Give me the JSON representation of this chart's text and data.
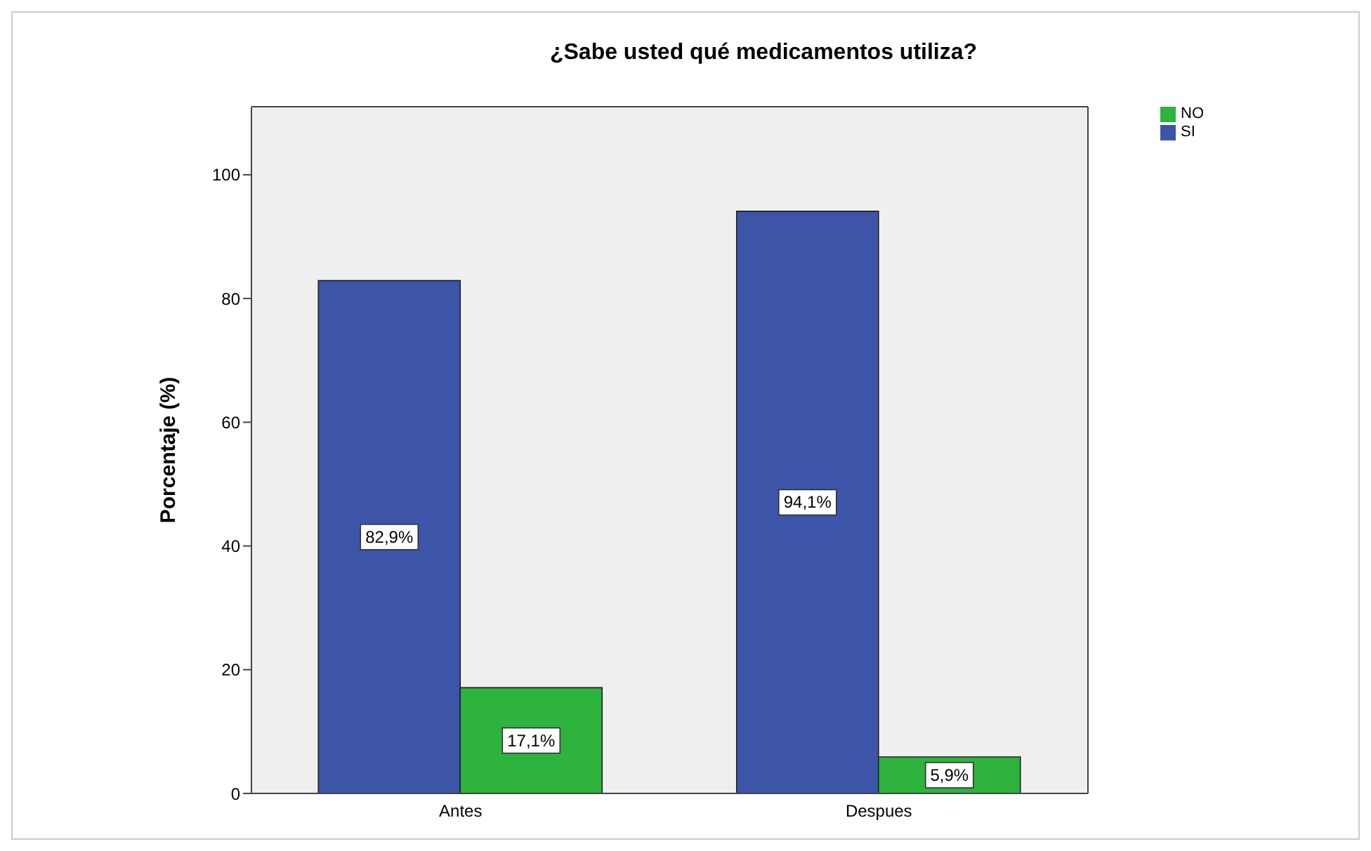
{
  "chart_data": {
    "type": "bar",
    "title": "¿Sabe usted qué medicamentos utiliza?",
    "ylabel": "Porcentaje (%)",
    "categories": [
      "Antes",
      "Despues"
    ],
    "series": [
      {
        "name": "SI",
        "color": "#3d55a8",
        "values": [
          82.9,
          94.1
        ],
        "value_labels": [
          "82,9%",
          "94,1%"
        ]
      },
      {
        "name": "NO",
        "color": "#2eb33e",
        "values": [
          17.1,
          5.9
        ],
        "value_labels": [
          "17,1%",
          "5,9%"
        ]
      }
    ],
    "ylim": [
      0,
      111
    ],
    "yticks": [
      0,
      20,
      40,
      60,
      80,
      100
    ],
    "grid": false,
    "legend": "top right"
  }
}
